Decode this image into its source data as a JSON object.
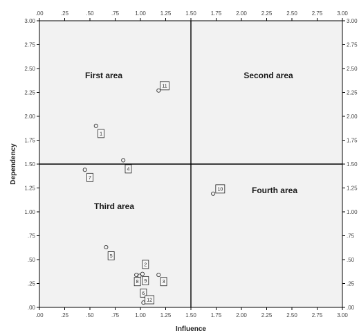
{
  "chart_data": {
    "type": "scatter",
    "xlabel": "Influence",
    "ylabel": "Dependency",
    "xlim": [
      0,
      3
    ],
    "ylim": [
      0,
      3
    ],
    "x_ticks": [
      ".00",
      ".25",
      ".50",
      ".75",
      "1.00",
      "1.25",
      "1.50",
      "1.75",
      "2.00",
      "2.25",
      "2.50",
      "2.75",
      "3.00"
    ],
    "y_ticks": [
      ".00",
      ".25",
      ".50",
      ".75",
      "1.00",
      "1.25",
      "1.50",
      "1.75",
      "2.00",
      "2.25",
      "2.50",
      "2.75",
      "3.00"
    ],
    "reference_lines": {
      "x": 1.5,
      "y": 1.5
    },
    "regions": [
      "First area",
      "Second area",
      "Third area",
      "Fourth area"
    ],
    "points": [
      {
        "label": "1",
        "x": 0.56,
        "y": 1.9
      },
      {
        "label": "2",
        "x": 1.03,
        "y": 0.05
      },
      {
        "label": "3",
        "x": 1.18,
        "y": 0.34
      },
      {
        "label": "4",
        "x": 0.83,
        "y": 1.54
      },
      {
        "label": "5",
        "x": 0.66,
        "y": 0.63
      },
      {
        "label": "6",
        "x": 0.96,
        "y": 0.34
      },
      {
        "label": "7",
        "x": 0.45,
        "y": 1.44
      },
      {
        "label": "8",
        "x": 0.99,
        "y": 0.33
      },
      {
        "label": "9",
        "x": 1.02,
        "y": 0.35
      },
      {
        "label": "10",
        "x": 1.72,
        "y": 1.19
      },
      {
        "label": "11",
        "x": 1.18,
        "y": 2.27
      },
      {
        "label": "12",
        "x": 1.09,
        "y": 0.08
      }
    ],
    "label_boxes": {
      "1": [
        0.61,
        1.82
      ],
      "2": [
        1.05,
        0.45
      ],
      "3": [
        1.23,
        0.27
      ],
      "4": [
        0.88,
        1.45
      ],
      "5": [
        0.71,
        0.54
      ],
      "6": [
        1.03,
        0.15
      ],
      "7": [
        0.5,
        1.36
      ],
      "8": [
        0.97,
        0.27
      ],
      "9": [
        1.05,
        0.28
      ],
      "10": [
        1.79,
        1.24
      ],
      "11": [
        1.24,
        2.32
      ],
      "12": [
        1.09,
        0.08
      ]
    },
    "grid": false
  }
}
